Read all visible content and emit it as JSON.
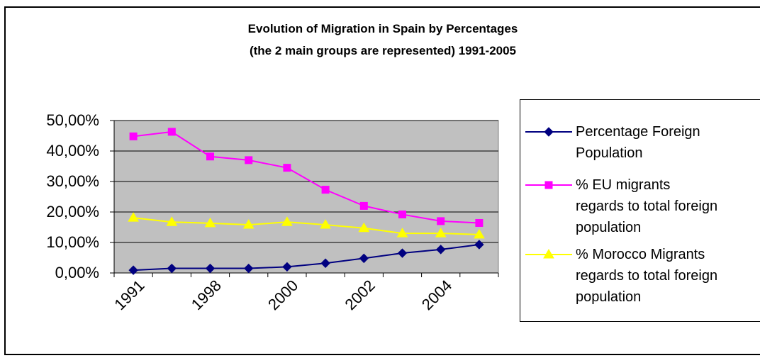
{
  "chart_data": {
    "type": "line",
    "title": "Evolution of Migration in Spain by Percentages",
    "subtitle": "(the 2 main groups are represented) 1991-2005",
    "categories": [
      "1991",
      null,
      "1998",
      null,
      "2000",
      null,
      "2002",
      null,
      "2004",
      null
    ],
    "series": [
      {
        "name": "Percentage Foreign\nPopulation",
        "color": "#000080",
        "marker": "diamond",
        "values": [
          0.9,
          1.5,
          1.5,
          1.5,
          2.0,
          3.2,
          4.8,
          6.5,
          7.7,
          9.3
        ]
      },
      {
        "name": "% EU migrants\nregards to total foreign\npopulation",
        "color": "#ff00ff",
        "marker": "square",
        "values": [
          44.8,
          46.3,
          38.2,
          37.0,
          34.5,
          27.3,
          22.0,
          19.2,
          17.0,
          16.4
        ]
      },
      {
        "name": "% Morocco Migrants\nregards to total foreign\npopulation",
        "color": "#ffff00",
        "marker": "triangle",
        "values": [
          18.1,
          16.7,
          16.3,
          15.8,
          16.7,
          15.8,
          14.7,
          13.0,
          13.0,
          12.6
        ]
      }
    ],
    "ylim": [
      0,
      50
    ],
    "yticks": [
      {
        "value": 0,
        "label": "0,00%"
      },
      {
        "value": 10,
        "label": "10,00%"
      },
      {
        "value": 20,
        "label": "20,00%"
      },
      {
        "value": 30,
        "label": "30,00%"
      },
      {
        "value": 40,
        "label": "40,00%"
      },
      {
        "value": 50,
        "label": "50,00%"
      }
    ],
    "grid": true,
    "plot_background": "#c0c0c0",
    "legend": "right"
  }
}
